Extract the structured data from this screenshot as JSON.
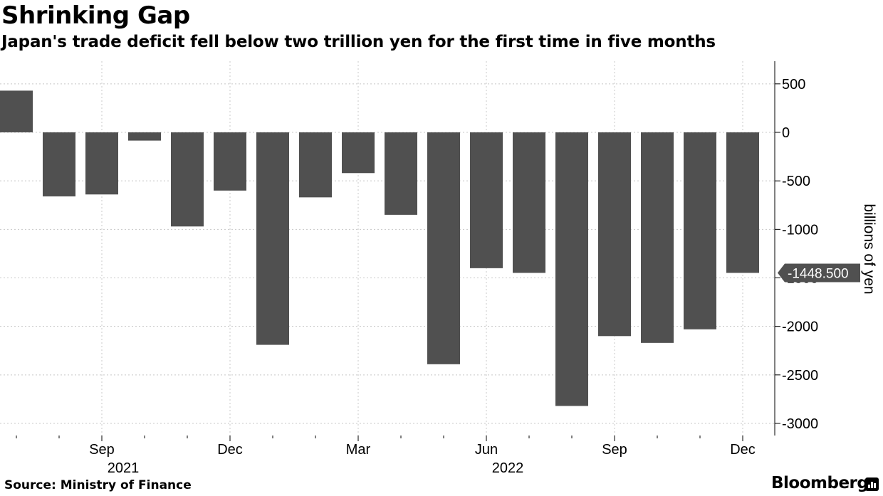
{
  "header": {
    "title": "Shrinking Gap",
    "subtitle": "Japan's trade deficit fell below two trillion yen for the first time in five months"
  },
  "footer": {
    "source": "Source: Ministry of Finance",
    "brand": "Bloomberg"
  },
  "colors": {
    "bar": "#505050",
    "grid": "#c8c8c8",
    "axis": "#000000",
    "callout_bg": "#505050",
    "callout_text": "#ffffff"
  },
  "chart_data": {
    "type": "bar",
    "ylabel": "billions of yen",
    "ylim": [
      -3100,
      750
    ],
    "yticks": [
      500,
      0,
      -500,
      -1000,
      -1500,
      -2000,
      -2500,
      -3000
    ],
    "grid": true,
    "axis_side": "right",
    "categories": [
      "2021-07",
      "2021-08",
      "2021-09",
      "2021-10",
      "2021-11",
      "2021-12",
      "2022-01",
      "2022-02",
      "2022-03",
      "2022-04",
      "2022-05",
      "2022-06",
      "2022-07",
      "2022-08",
      "2022-09",
      "2022-10",
      "2022-11",
      "2022-12"
    ],
    "values": [
      430,
      -660,
      -640,
      -85,
      -970,
      -600,
      -2190,
      -670,
      -420,
      -850,
      -2390,
      -1400,
      -1448.5,
      -2820,
      -2100,
      -2170,
      -2030,
      -1448.5
    ],
    "month_labels": [
      {
        "index": 2,
        "label": "Sep"
      },
      {
        "index": 5,
        "label": "Dec"
      },
      {
        "index": 8,
        "label": "Mar"
      },
      {
        "index": 11,
        "label": "Jun"
      },
      {
        "index": 14,
        "label": "Sep"
      },
      {
        "index": 17,
        "label": "Dec"
      }
    ],
    "year_labels": [
      {
        "index": 2,
        "label": "2021"
      },
      {
        "index": 11,
        "label": "2022"
      }
    ],
    "last_value_label": "-1448.500"
  }
}
